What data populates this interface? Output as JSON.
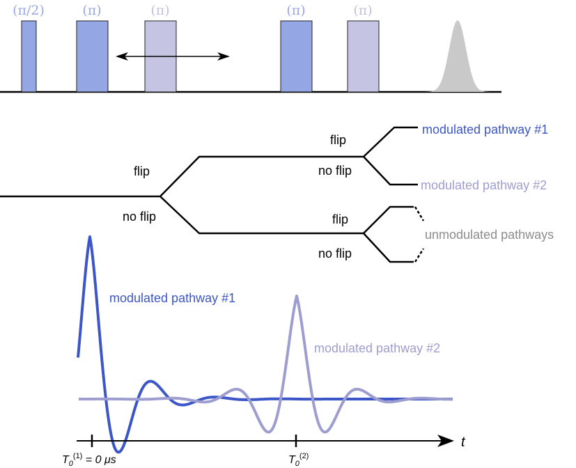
{
  "colors": {
    "pathway1": "#3c56c7",
    "pathway2": "#9d9dd0",
    "pulse_dark": "#94a6e3",
    "pulse_light": "#c5c4e2",
    "echo": "#c9c9c9",
    "unmodulated": "#8c8c8c",
    "line": "#000000"
  },
  "pulse_sequence": {
    "labels": [
      "(π/2)",
      "(π)",
      "(π)",
      "(π)",
      "(π)"
    ]
  },
  "tree": {
    "first": {
      "flip": "flip",
      "no_flip": "no flip"
    },
    "upper": {
      "flip": "flip",
      "no_flip": "no flip"
    },
    "lower": {
      "flip": "flip",
      "no_flip": "no flip"
    },
    "pathway1_label": "modulated pathway #1",
    "pathway2_label": "modulated pathway #2",
    "unmodulated_label": "unmodulated pathways"
  },
  "signal": {
    "pathway1_label": "modulated pathway #1",
    "pathway2_label": "modulated pathway #2",
    "axis_label": "t",
    "tick1": {
      "T": "T",
      "sub": "0",
      "sup": "(1)",
      "rest": " = 0 μs"
    },
    "tick2": {
      "T": "T",
      "sub": "0",
      "sup": "(2)"
    }
  }
}
